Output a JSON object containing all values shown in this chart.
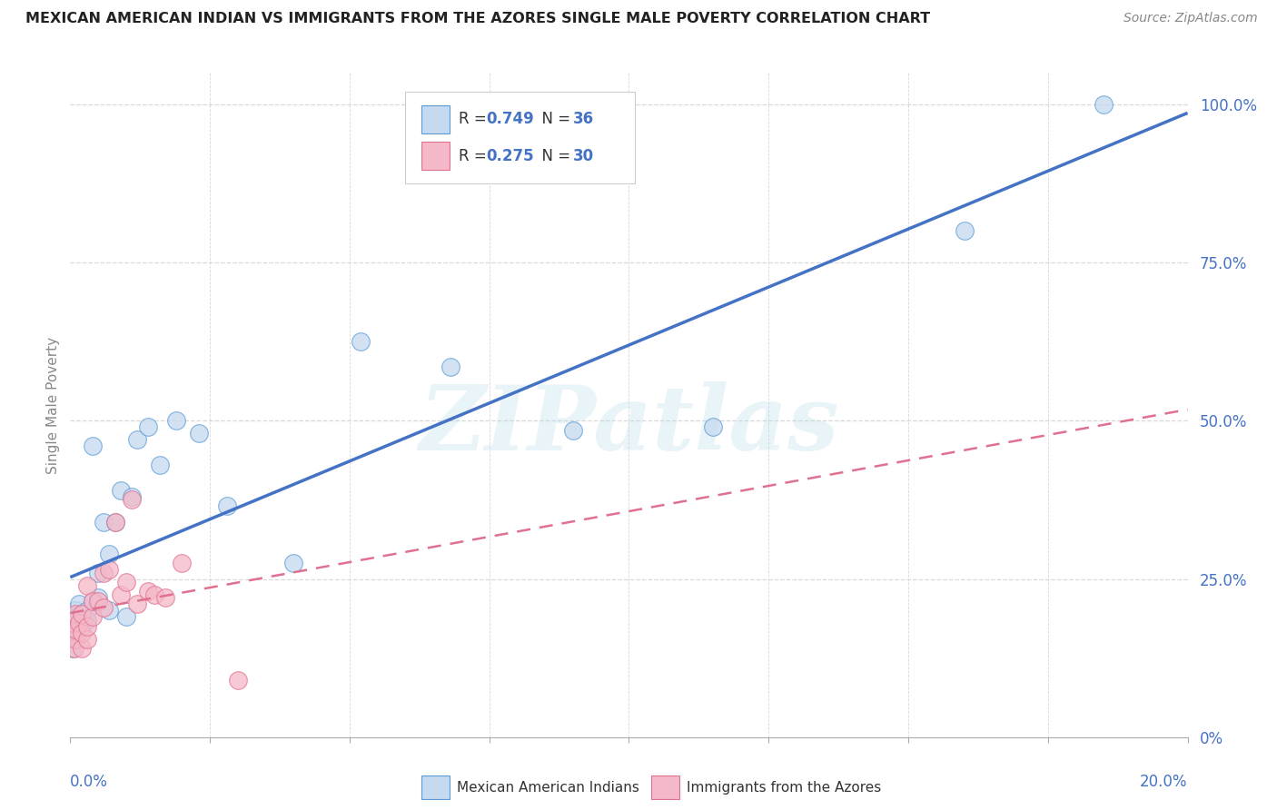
{
  "title": "MEXICAN AMERICAN INDIAN VS IMMIGRANTS FROM THE AZORES SINGLE MALE POVERTY CORRELATION CHART",
  "source": "Source: ZipAtlas.com",
  "ylabel": "Single Male Poverty",
  "legend_blue_R": "0.749",
  "legend_blue_N": "36",
  "legend_pink_R": "0.275",
  "legend_pink_N": "30",
  "legend_label_blue": "Mexican American Indians",
  "legend_label_pink": "Immigrants from the Azores",
  "watermark": "ZIPatlas",
  "blue_face": "#c5d9f0",
  "blue_edge": "#5b9bd5",
  "blue_line": "#4472c4",
  "pink_face": "#f4b8c8",
  "pink_edge": "#e07090",
  "pink_line": "#e07090",
  "axis_color": "#4472c4",
  "grid_color": "#d8d8d8",
  "xmin": 0.0,
  "xmax": 0.2,
  "ymin": 0.0,
  "ymax": 1.05,
  "yticks": [
    0.0,
    0.25,
    0.5,
    0.75,
    1.0
  ],
  "ytick_labels": [
    "0%",
    "25.0%",
    "50.0%",
    "75.0%",
    "100.0%"
  ],
  "blue_x": [
    0.0004,
    0.0006,
    0.0008,
    0.001,
    0.001,
    0.0012,
    0.0015,
    0.0015,
    0.002,
    0.002,
    0.003,
    0.003,
    0.004,
    0.004,
    0.005,
    0.005,
    0.006,
    0.007,
    0.007,
    0.008,
    0.009,
    0.01,
    0.011,
    0.012,
    0.014,
    0.016,
    0.019,
    0.023,
    0.028,
    0.04,
    0.052,
    0.068,
    0.09,
    0.115,
    0.16,
    0.185
  ],
  "blue_y": [
    0.14,
    0.17,
    0.16,
    0.2,
    0.18,
    0.19,
    0.175,
    0.21,
    0.175,
    0.195,
    0.2,
    0.185,
    0.46,
    0.215,
    0.22,
    0.26,
    0.34,
    0.2,
    0.29,
    0.34,
    0.39,
    0.19,
    0.38,
    0.47,
    0.49,
    0.43,
    0.5,
    0.48,
    0.365,
    0.275,
    0.625,
    0.585,
    0.485,
    0.49,
    0.8,
    1.0
  ],
  "pink_x": [
    0.0002,
    0.0003,
    0.0005,
    0.0007,
    0.001,
    0.001,
    0.001,
    0.0015,
    0.002,
    0.002,
    0.002,
    0.003,
    0.003,
    0.003,
    0.004,
    0.004,
    0.005,
    0.006,
    0.006,
    0.007,
    0.008,
    0.009,
    0.01,
    0.011,
    0.012,
    0.014,
    0.015,
    0.017,
    0.02,
    0.03
  ],
  "pink_y": [
    0.16,
    0.17,
    0.18,
    0.14,
    0.155,
    0.17,
    0.195,
    0.18,
    0.14,
    0.165,
    0.195,
    0.155,
    0.175,
    0.24,
    0.19,
    0.215,
    0.215,
    0.26,
    0.205,
    0.265,
    0.34,
    0.225,
    0.245,
    0.375,
    0.21,
    0.23,
    0.225,
    0.22,
    0.275,
    0.09
  ]
}
